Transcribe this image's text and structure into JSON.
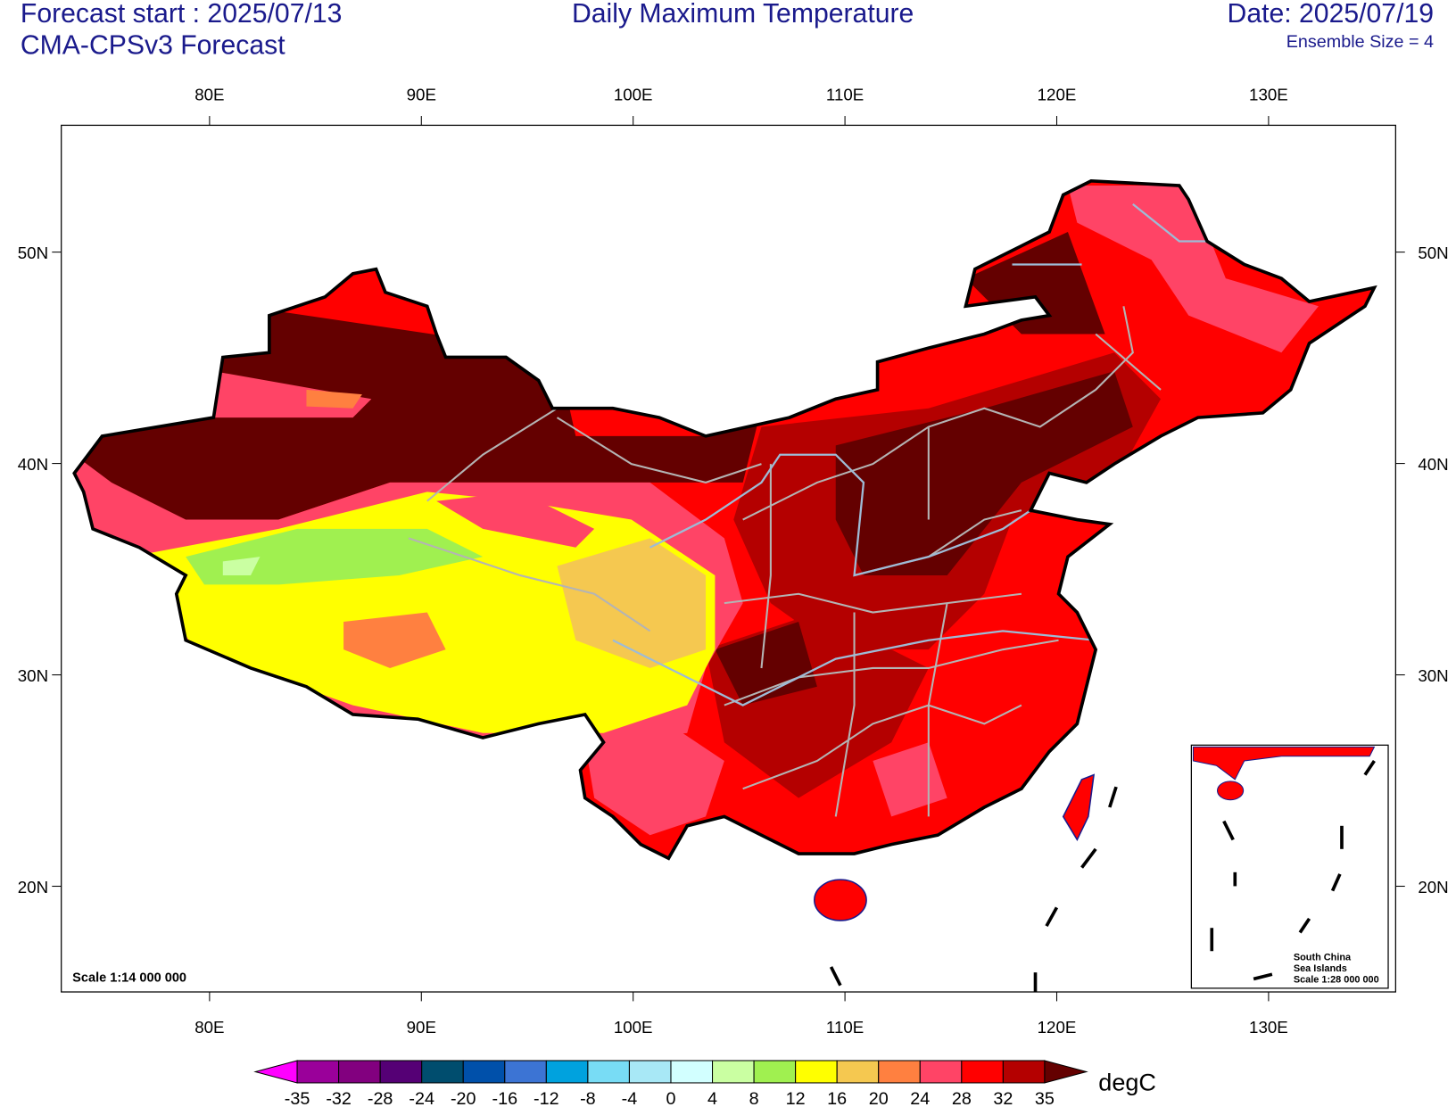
{
  "header": {
    "forecast_start": "Forecast start : 2025/07/13",
    "model": "CMA-CPSv3 Forecast",
    "title": "Daily Maximum Temperature",
    "date": "Date: 2025/07/19",
    "ensemble": "Ensemble Size = 4"
  },
  "map": {
    "lon_range": [
      73,
      136
    ],
    "lat_range": [
      15,
      56
    ],
    "lon_ticks": [
      {
        "value": 80,
        "label": "80E"
      },
      {
        "value": 90,
        "label": "90E"
      },
      {
        "value": 100,
        "label": "100E"
      },
      {
        "value": 110,
        "label": "110E"
      },
      {
        "value": 120,
        "label": "120E"
      },
      {
        "value": 130,
        "label": "130E"
      }
    ],
    "lat_ticks": [
      {
        "value": 20,
        "label": "20N"
      },
      {
        "value": 30,
        "label": "30N"
      },
      {
        "value": 40,
        "label": "40N"
      },
      {
        "value": 50,
        "label": "50N"
      }
    ],
    "scale": "Scale 1:14 000 000",
    "inset": {
      "lines": [
        "South China",
        "Sea Islands",
        "Scale 1:28 000 000"
      ]
    }
  },
  "colorbar": {
    "levels": [
      -35,
      -32,
      -28,
      -24,
      -20,
      -16,
      -12,
      -8,
      -4,
      0,
      4,
      8,
      12,
      16,
      20,
      24,
      28,
      32,
      35
    ],
    "colors": [
      "#ff00ff",
      "#9a009a",
      "#82007f",
      "#550075",
      "#004d6e",
      "#0050aa",
      "#3c74d4",
      "#00a2de",
      "#78dcf5",
      "#a8e8f6",
      "#d2ffff",
      "#caffa2",
      "#a0f050",
      "#ffff00",
      "#f5c850",
      "#ff8040",
      "#ff4466",
      "#ff0000",
      "#b40000",
      "#640000"
    ],
    "unit": "degC"
  }
}
